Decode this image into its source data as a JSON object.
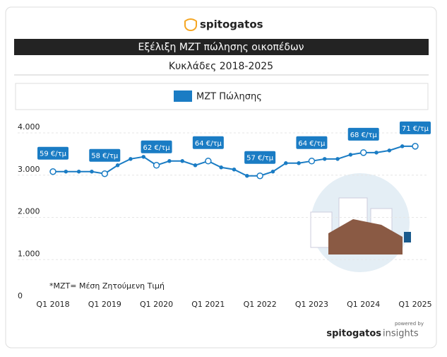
{
  "brand": "spitogatos",
  "chart_data": {
    "type": "line",
    "title": "Εξέλιξη ΜΖΤ πώλησης οικοπέδων",
    "subtitle": "Κυκλάδες 2018-2025",
    "categories": [
      "Q1 2018",
      null,
      null,
      null,
      "Q1 2019",
      null,
      null,
      null,
      "Q1 2020",
      null,
      null,
      null,
      "Q1 2021",
      null,
      null,
      null,
      "Q1 2022",
      null,
      null,
      null,
      "Q1 2023",
      null,
      null,
      null,
      "Q1 2024",
      null,
      null,
      null,
      "Q1 2025"
    ],
    "series": [
      {
        "name": "ΜΖΤ Πώλησης",
        "color": "#1a7cc4",
        "values": [
          2950,
          2950,
          2950,
          2950,
          2900,
          3100,
          3250,
          3300,
          3100,
          3200,
          3200,
          3100,
          3200,
          3050,
          3000,
          2850,
          2850,
          2950,
          3150,
          3150,
          3200,
          3250,
          3250,
          3350,
          3400,
          3400,
          3450,
          3550,
          3550
        ]
      }
    ],
    "annotations": [
      "59 €/τμ",
      "58 €/τμ",
      "62 €/τμ",
      "64 €/τμ",
      "57 €/τμ",
      "64 €/τμ",
      "68 €/τμ",
      "71 €/τμ"
    ],
    "ylim": [
      0,
      4000
    ],
    "yticks": [
      0,
      {
        "value": 1000,
        "label": "1.000"
      },
      {
        "value": 2000,
        "label": "2.000"
      },
      {
        "value": 3000,
        "label": "3.000"
      },
      {
        "value": 4000,
        "label": "4.000"
      }
    ],
    "grid": true,
    "footnote": "*ΜΖΤ= Μέση Ζητούμενη Τιμή"
  },
  "footer": {
    "powered": "powered by",
    "brand": "spitogatos",
    "product": "insights"
  }
}
